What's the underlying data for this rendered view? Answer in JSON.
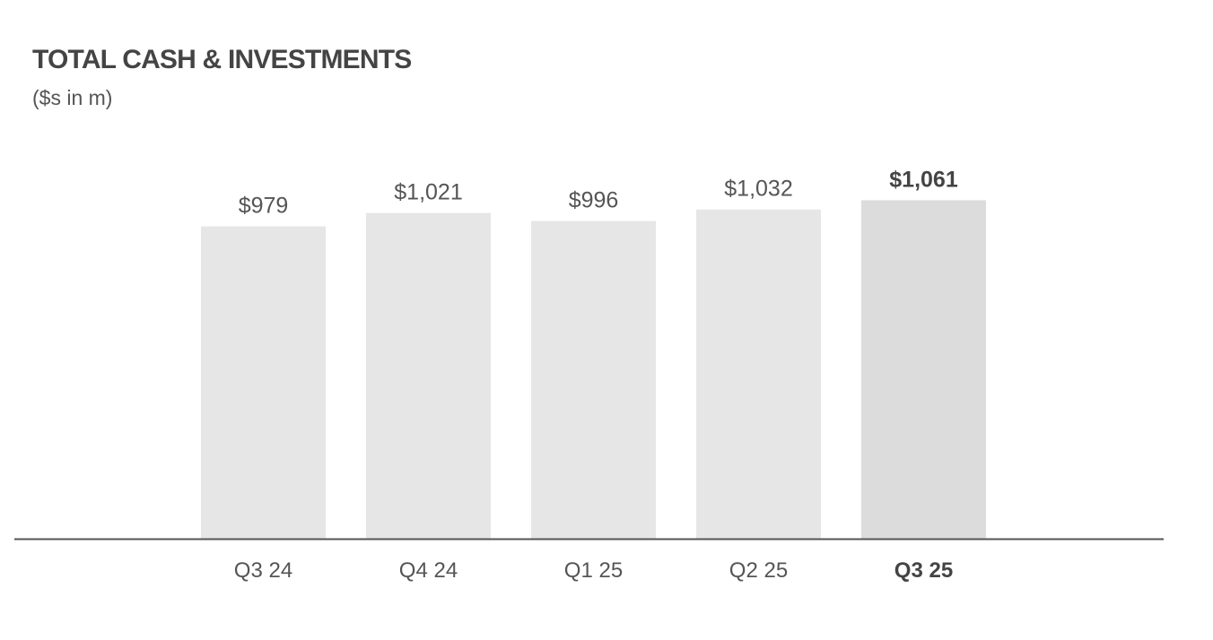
{
  "chart_data": {
    "type": "bar",
    "title": "TOTAL CASH & INVESTMENTS",
    "subtitle": "($s in m)",
    "xlabel": "",
    "ylabel": "",
    "categories": [
      "Q3 24",
      "Q4 24",
      "Q1 25",
      "Q2 25",
      "Q3 25"
    ],
    "values": [
      979,
      1021,
      996,
      1032,
      1061
    ],
    "value_labels": [
      "$979",
      "$1,021",
      "$996",
      "$1,032",
      "$1,061"
    ],
    "highlight_index": 4,
    "grid": false,
    "legend": "none",
    "colors": {
      "bar": "#e6e6e6",
      "bar_highlight": "#dcdcdc",
      "axis": "#555555",
      "text": "#444444"
    }
  }
}
